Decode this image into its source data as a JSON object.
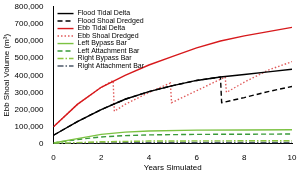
{
  "chart_data": {
    "type": "line",
    "x_label": "Years Simulated",
    "y_label": "Ebb Shoal Volume (m³)",
    "xlim": [
      0,
      10
    ],
    "xticks": [
      0,
      2,
      4,
      6,
      8,
      10
    ],
    "ylim": [
      0,
      800000
    ],
    "yticks": [
      0,
      {
        "value": 100000,
        "label": "100,000"
      },
      {
        "value": 200000,
        "label": "200,000"
      },
      {
        "value": 300000,
        "label": "300,000"
      },
      {
        "value": 400000,
        "label": "400,000"
      },
      {
        "value": 500000,
        "label": "500,000"
      },
      {
        "value": 600000,
        "label": "600,000"
      },
      {
        "value": 700000,
        "label": "700,000"
      },
      {
        "value": 800000,
        "label": "800,000"
      }
    ],
    "grid": false,
    "legend": "upper left",
    "series": [
      {
        "name": "Flood Tidal Delta",
        "color": "#000000",
        "line_style": "solid",
        "x": [
          0,
          1,
          2,
          3,
          4,
          5,
          6,
          7,
          8,
          9,
          10
        ],
        "values": [
          50000,
          130000,
          200000,
          260000,
          305000,
          340000,
          370000,
          390000,
          405000,
          420000,
          435000
        ]
      },
      {
        "name": "Flood Shoal Dredged",
        "color": "#000000",
        "line_style": "dashed",
        "x": [
          0,
          1,
          2,
          3,
          4,
          5,
          6,
          7,
          7.05,
          8,
          9,
          10
        ],
        "values": [
          50000,
          130000,
          200000,
          260000,
          305000,
          340000,
          370000,
          390000,
          240000,
          270000,
          305000,
          335000
        ]
      },
      {
        "name": "Ebb Tidal Delta",
        "color": "#d7191c",
        "line_style": "solid",
        "x": [
          0,
          1,
          2,
          3,
          4,
          5,
          6,
          7,
          8,
          9,
          10
        ],
        "values": [
          100000,
          230000,
          330000,
          400000,
          460000,
          510000,
          560000,
          600000,
          630000,
          655000,
          680000
        ]
      },
      {
        "name": "Ebb Shoal Dredged",
        "color": "#e05a5a",
        "line_style": "dotted",
        "x": [
          0,
          1,
          2,
          2.5,
          2.55,
          3,
          4,
          4.9,
          4.95,
          6,
          7.2,
          7.25,
          8,
          9,
          10
        ],
        "values": [
          100000,
          230000,
          330000,
          370000,
          190000,
          230000,
          300000,
          355000,
          240000,
          310000,
          390000,
          300000,
          360000,
          430000,
          480000
        ]
      },
      {
        "name": "Left Bypass Bar",
        "color": "#7cc242",
        "line_style": "solid",
        "x": [
          0,
          1,
          2,
          3,
          4,
          6,
          8,
          10
        ],
        "values": [
          5000,
          30000,
          55000,
          68000,
          75000,
          80000,
          81000,
          82000
        ]
      },
      {
        "name": "Left Attachment Bar",
        "color": "#3a9a3a",
        "line_style": "dashed",
        "x": [
          0,
          1,
          2,
          3,
          4,
          6,
          8,
          10
        ],
        "values": [
          5000,
          25000,
          40000,
          48000,
          52000,
          55000,
          56000,
          57000
        ]
      },
      {
        "name": "Right Bypass Bar",
        "color": "#8cc63f",
        "line_style": "dashdot",
        "x": [
          0,
          2,
          4,
          6,
          10
        ],
        "values": [
          2000,
          12000,
          16000,
          17000,
          18000
        ]
      },
      {
        "name": "Right Attachment Bar",
        "color": "#4d5a6a",
        "line_style": "dashdot",
        "x": [
          0,
          2,
          4,
          6,
          10
        ],
        "values": [
          1000,
          5000,
          7000,
          8000,
          8000
        ]
      }
    ]
  }
}
